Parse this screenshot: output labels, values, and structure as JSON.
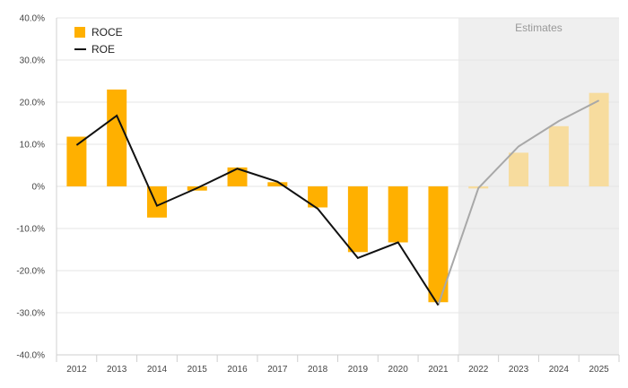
{
  "chart_data": {
    "type": "bar",
    "categories": [
      "2012",
      "2013",
      "2014",
      "2015",
      "2016",
      "2017",
      "2018",
      "2019",
      "2020",
      "2021",
      "2022",
      "2023",
      "2024",
      "2025"
    ],
    "estimate_start_index": 10,
    "estimates_label": "Estimates",
    "series": [
      {
        "name": "ROCE",
        "type": "bar",
        "values": [
          11.8,
          23.0,
          -7.4,
          -1.0,
          4.5,
          1.0,
          -5.0,
          -15.6,
          -13.3,
          -27.5,
          -0.5,
          8.0,
          14.3,
          22.2
        ]
      },
      {
        "name": "ROE",
        "type": "line",
        "values": [
          9.8,
          16.8,
          -4.6,
          -0.4,
          4.2,
          1.1,
          -5.3,
          -17.0,
          -13.3,
          -28.2,
          -0.4,
          9.5,
          15.5,
          20.4
        ]
      }
    ],
    "yticks": [
      "40.0%",
      "30.0%",
      "20.0%",
      "10.0%",
      "0%",
      "-10.0%",
      "-20.0%",
      "-30.0%",
      "-40.0%"
    ],
    "ylim": [
      -40,
      40
    ],
    "grid": true,
    "legend_position": "top-left",
    "colors": {
      "bar": "#FFB000",
      "bar_estimate": "#F7DC9E",
      "line": "#111111",
      "line_estimate": "#A8A8A8",
      "estimate_band": "#EFEFEF",
      "grid": "#E6E6E6"
    }
  }
}
